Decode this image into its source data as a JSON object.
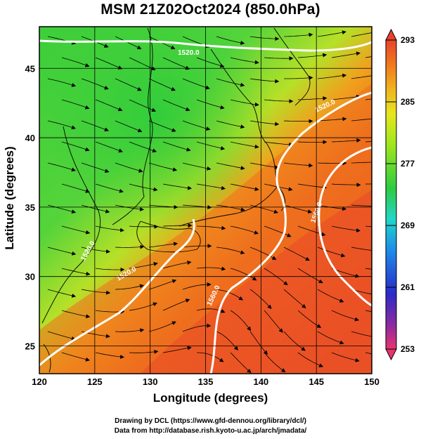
{
  "title": "MSM 21Z02Oct2024 (850.0hPa)",
  "map": {
    "x_axis_label": "Longitude (degrees)",
    "y_axis_label": "Latitude  (degrees)",
    "lon_range": [
      120,
      150
    ],
    "lat_range": [
      23,
      48
    ],
    "lon_ticks": [
      "120",
      "125",
      "130",
      "135",
      "140",
      "145",
      "150"
    ],
    "lat_ticks": [
      "25",
      "30",
      "35",
      "40",
      "45"
    ],
    "field": "temperature (K) shaded, streamlines of wind",
    "contour_labels": [
      "1520.0",
      "1520.0",
      "1520.0",
      "1520.0",
      "1560.0",
      "1560.0"
    ],
    "colors": {
      "cold_green": "#33cc33",
      "warm_yellow": "#d8e61e",
      "hot_orange": "#ec6a1e",
      "hottest_red": "#e82a28",
      "contour": "#ffffff",
      "streamline": "#000000",
      "grid": "#000000"
    }
  },
  "colorbar": {
    "labels": [
      "293",
      "285",
      "277",
      "269",
      "261",
      "253"
    ],
    "min": 253,
    "max": 293,
    "colors": [
      "#e9336f",
      "#7a2b9c",
      "#2a2bc8",
      "#1e8ce8",
      "#22d6c8",
      "#2ecc40",
      "#9ee61e",
      "#e6e61e",
      "#f0b41e",
      "#f07a1e",
      "#e8432a"
    ]
  },
  "credits": {
    "line1": "Drawing by DCL (https://www.gfd-dennou.org/library/dcl/)",
    "line2": "Data from http://database.rish.kyoto-u.ac.jp/arch/jmadata/"
  }
}
